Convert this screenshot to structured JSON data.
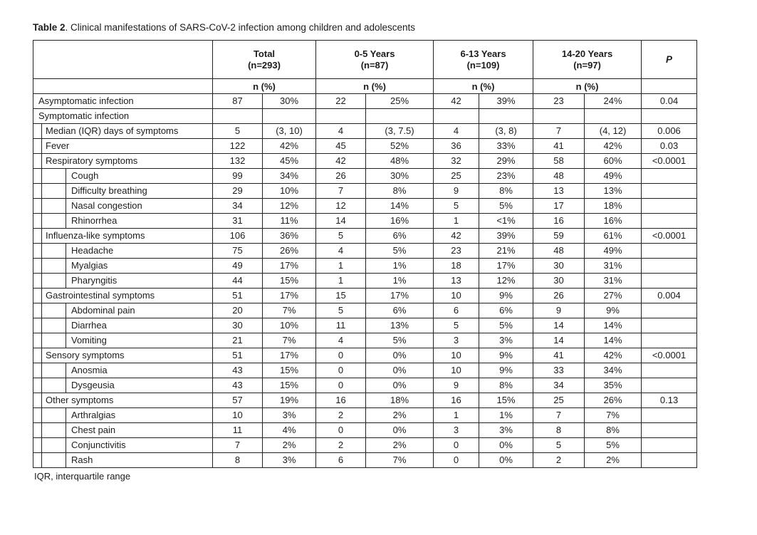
{
  "title": {
    "label": "Table 2",
    "rest": ". Clinical manifestations of SARS-CoV-2 infection among children and adolescents"
  },
  "table": {
    "groups": [
      {
        "name": "Total",
        "n": "(n=293)"
      },
      {
        "name": "0-5 Years",
        "n": "(n=87)"
      },
      {
        "name": "6-13 Years",
        "n": "(n=109)"
      },
      {
        "name": "14-20 Years",
        "n": "(n=97)"
      }
    ],
    "p_label": "P",
    "subheader": "n (%)",
    "rows": [
      {
        "label": "Asymptomatic infection",
        "indent": 0,
        "values": [
          "87",
          "30%",
          "22",
          "25%",
          "42",
          "39%",
          "23",
          "24%"
        ],
        "p": "0.04"
      },
      {
        "label": "Symptomatic infection",
        "indent": 0,
        "values": [
          "",
          "",
          "",
          "",
          "",
          "",
          "",
          ""
        ],
        "p": ""
      },
      {
        "label": "Median (IQR) days of symptoms",
        "indent": 1,
        "values": [
          "5",
          "(3, 10)",
          "4",
          "(3, 7.5)",
          "4",
          "(3, 8)",
          "7",
          "(4, 12)"
        ],
        "p": "0.006"
      },
      {
        "label": "Fever",
        "indent": 1,
        "values": [
          "122",
          "42%",
          "45",
          "52%",
          "36",
          "33%",
          "41",
          "42%"
        ],
        "p": "0.03"
      },
      {
        "label": "Respiratory symptoms",
        "indent": 1,
        "values": [
          "132",
          "45%",
          "42",
          "48%",
          "32",
          "29%",
          "58",
          "60%"
        ],
        "p": "<0.0001"
      },
      {
        "label": "Cough",
        "indent": 2,
        "values": [
          "99",
          "34%",
          "26",
          "30%",
          "25",
          "23%",
          "48",
          "49%"
        ],
        "p": ""
      },
      {
        "label": "Difficulty breathing",
        "indent": 2,
        "values": [
          "29",
          "10%",
          "7",
          "8%",
          "9",
          "8%",
          "13",
          "13%"
        ],
        "p": ""
      },
      {
        "label": "Nasal congestion",
        "indent": 2,
        "values": [
          "34",
          "12%",
          "12",
          "14%",
          "5",
          "5%",
          "17",
          "18%"
        ],
        "p": ""
      },
      {
        "label": "Rhinorrhea",
        "indent": 2,
        "values": [
          "31",
          "11%",
          "14",
          "16%",
          "1",
          "<1%",
          "16",
          "16%"
        ],
        "p": ""
      },
      {
        "label": "Influenza-like symptoms",
        "indent": 1,
        "values": [
          "106",
          "36%",
          "5",
          "6%",
          "42",
          "39%",
          "59",
          "61%"
        ],
        "p": "<0.0001"
      },
      {
        "label": "Headache",
        "indent": 2,
        "values": [
          "75",
          "26%",
          "4",
          "5%",
          "23",
          "21%",
          "48",
          "49%"
        ],
        "p": ""
      },
      {
        "label": "Myalgias",
        "indent": 2,
        "values": [
          "49",
          "17%",
          "1",
          "1%",
          "18",
          "17%",
          "30",
          "31%"
        ],
        "p": ""
      },
      {
        "label": "Pharyngitis",
        "indent": 2,
        "values": [
          "44",
          "15%",
          "1",
          "1%",
          "13",
          "12%",
          "30",
          "31%"
        ],
        "p": ""
      },
      {
        "label": "Gastrointestinal symptoms",
        "indent": 1,
        "values": [
          "51",
          "17%",
          "15",
          "17%",
          "10",
          "9%",
          "26",
          "27%"
        ],
        "p": "0.004"
      },
      {
        "label": "Abdominal pain",
        "indent": 2,
        "values": [
          "20",
          "7%",
          "5",
          "6%",
          "6",
          "6%",
          "9",
          "9%"
        ],
        "p": ""
      },
      {
        "label": "Diarrhea",
        "indent": 2,
        "values": [
          "30",
          "10%",
          "11",
          "13%",
          "5",
          "5%",
          "14",
          "14%"
        ],
        "p": ""
      },
      {
        "label": "Vomiting",
        "indent": 2,
        "values": [
          "21",
          "7%",
          "4",
          "5%",
          "3",
          "3%",
          "14",
          "14%"
        ],
        "p": ""
      },
      {
        "label": "Sensory symptoms",
        "indent": 1,
        "values": [
          "51",
          "17%",
          "0",
          "0%",
          "10",
          "9%",
          "41",
          "42%"
        ],
        "p": "<0.0001"
      },
      {
        "label": "Anosmia",
        "indent": 2,
        "values": [
          "43",
          "15%",
          "0",
          "0%",
          "10",
          "9%",
          "33",
          "34%"
        ],
        "p": ""
      },
      {
        "label": "Dysgeusia",
        "indent": 2,
        "values": [
          "43",
          "15%",
          "0",
          "0%",
          "9",
          "8%",
          "34",
          "35%"
        ],
        "p": ""
      },
      {
        "label": "Other symptoms",
        "indent": 1,
        "values": [
          "57",
          "19%",
          "16",
          "18%",
          "16",
          "15%",
          "25",
          "26%"
        ],
        "p": "0.13"
      },
      {
        "label": "Arthralgias",
        "indent": 2,
        "values": [
          "10",
          "3%",
          "2",
          "2%",
          "1",
          "1%",
          "7",
          "7%"
        ],
        "p": ""
      },
      {
        "label": "Chest pain",
        "indent": 2,
        "values": [
          "11",
          "4%",
          "0",
          "0%",
          "3",
          "3%",
          "8",
          "8%"
        ],
        "p": ""
      },
      {
        "label": "Conjunctivitis",
        "indent": 2,
        "values": [
          "7",
          "2%",
          "2",
          "2%",
          "0",
          "0%",
          "5",
          "5%"
        ],
        "p": ""
      },
      {
        "label": "Rash",
        "indent": 2,
        "values": [
          "8",
          "3%",
          "6",
          "7%",
          "0",
          "0%",
          "2",
          "2%"
        ],
        "p": ""
      }
    ]
  },
  "footnote": "IQR, interquartile range"
}
